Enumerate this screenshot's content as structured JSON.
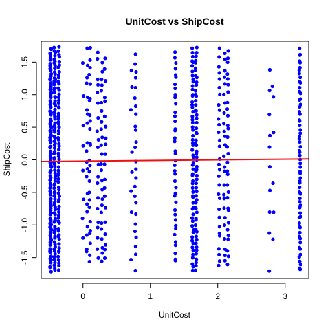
{
  "chart_data": {
    "type": "scatter",
    "title": "UnitCost vs ShipCost",
    "xlabel": "UnitCost",
    "ylabel": "ShipCost",
    "xlim": [
      -0.62,
      3.35
    ],
    "ylim": [
      -1.82,
      1.82
    ],
    "xticks": [
      0,
      1,
      2,
      3
    ],
    "yticks": [
      -1.5,
      -1.0,
      -0.5,
      0.0,
      0.5,
      1.0,
      1.5
    ],
    "ytick_labels": [
      "-1.5",
      "-1.0",
      "-0.5",
      "0.0",
      "0.5",
      "1.0",
      "1.5"
    ],
    "point_color": "#0000ff",
    "fit_line_color": "#ee1111",
    "fit_line": {
      "intercept": -0.02,
      "slope": 0.01
    },
    "series": [
      {
        "name": "",
        "columns": [
          {
            "x": -0.48,
            "n": 90,
            "y_range": [
              -1.72,
              1.74
            ]
          },
          {
            "x": -0.42,
            "n": 85,
            "y_range": [
              -1.72,
              1.74
            ]
          },
          {
            "x": -0.36,
            "n": 70,
            "y_range": [
              -1.7,
              1.74
            ]
          },
          {
            "x": 0.0,
            "n": 8,
            "y_range": [
              -1.55,
              1.74
            ]
          },
          {
            "x": 0.06,
            "n": 20,
            "y_range": [
              -1.55,
              1.74
            ]
          },
          {
            "x": 0.1,
            "n": 25,
            "y_range": [
              -1.65,
              1.74
            ]
          },
          {
            "x": 0.22,
            "n": 20,
            "y_range": [
              -1.65,
              1.74
            ]
          },
          {
            "x": 0.28,
            "n": 25,
            "y_range": [
              -1.65,
              1.6
            ]
          },
          {
            "x": 0.33,
            "n": 20,
            "y_range": [
              -1.65,
              1.6
            ]
          },
          {
            "x": 0.72,
            "n": 8,
            "y_range": [
              -1.55,
              1.72
            ]
          },
          {
            "x": 0.78,
            "n": 25,
            "y_range": [
              -1.7,
              1.72
            ]
          },
          {
            "x": 1.37,
            "n": 40,
            "y_range": [
              -1.62,
              1.72
            ]
          },
          {
            "x": 1.63,
            "n": 60,
            "y_range": [
              -1.72,
              1.74
            ]
          },
          {
            "x": 1.68,
            "n": 60,
            "y_range": [
              -1.72,
              1.74
            ]
          },
          {
            "x": 2.02,
            "n": 30,
            "y_range": [
              -1.72,
              1.74
            ]
          },
          {
            "x": 2.1,
            "n": 25,
            "y_range": [
              -1.65,
              1.74
            ]
          },
          {
            "x": 2.15,
            "n": 30,
            "y_range": [
              -1.65,
              1.74
            ]
          },
          {
            "x": 2.77,
            "n": 10,
            "y_range": [
              -1.72,
              1.7
            ]
          },
          {
            "x": 2.82,
            "n": 6,
            "y_range": [
              -1.4,
              1.5
            ]
          },
          {
            "x": 3.22,
            "n": 65,
            "y_range": [
              -1.72,
              1.72
            ]
          }
        ]
      }
    ]
  }
}
